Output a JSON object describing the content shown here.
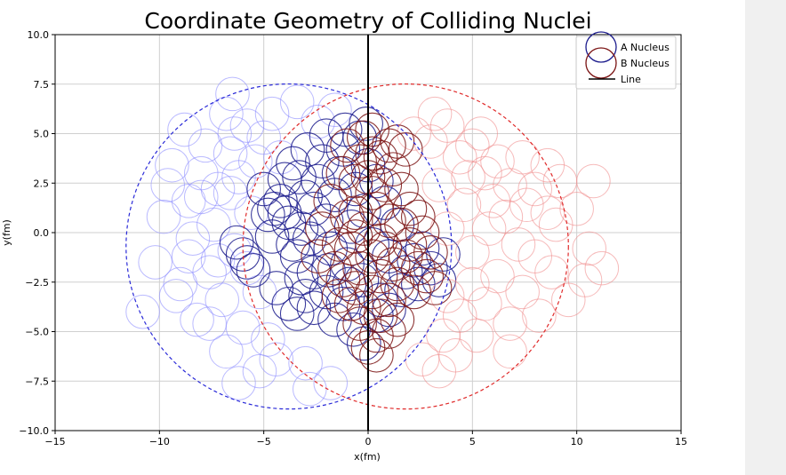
{
  "chart_data": {
    "type": "scatter",
    "title": "Coordinate Geometry of Colliding Nuclei",
    "xlabel": "x(fm)",
    "ylabel": "y(fm)",
    "xlim": [
      -15,
      15
    ],
    "ylim": [
      -10,
      10
    ],
    "xticks": [
      -15,
      -10,
      -5,
      0,
      5,
      10,
      15
    ],
    "yticks": [
      -10,
      -7.5,
      -5,
      -2.5,
      0,
      2.5,
      5,
      7.5,
      10
    ],
    "xtick_labels": [
      "−15",
      "−10",
      "−5",
      "0",
      "5",
      "10",
      "15"
    ],
    "ytick_labels": [
      "−10.0",
      "−7.5",
      "−5.0",
      "−2.5",
      "0.0",
      "2.5",
      "5.0",
      "7.5",
      "10.0"
    ],
    "grid": true,
    "legend_position": "top-right",
    "legend": [
      "A Nucleus",
      "B Nucleus",
      "Line"
    ],
    "colors": {
      "a": "#1a1a8c",
      "a_faint": "#8c8cff",
      "b": "#7a1212",
      "b_faint": "#f08c8c",
      "a_boundary": "#2a2ad8",
      "b_boundary": "#e02a2a",
      "line": "#000000",
      "grid": "#cfcfcf"
    },
    "nucleon_radius": 0.8,
    "boundaries": [
      {
        "series": "A Nucleus",
        "center": [
          -3.8,
          -0.7
        ],
        "radius": 7.8
      },
      {
        "series": "B Nucleus",
        "center": [
          1.8,
          -0.7
        ],
        "radius": 7.8
      }
    ],
    "line": {
      "x": 0
    },
    "series": [
      {
        "name": "A Nucleus",
        "participants": [
          [
            -6.3,
            -0.5
          ],
          [
            -6.0,
            -1.1
          ],
          [
            -5.8,
            -1.5
          ],
          [
            -5.5,
            -1.9
          ],
          [
            -4.8,
            0.9
          ],
          [
            -4.5,
            1.2
          ],
          [
            -4.2,
            1.6
          ],
          [
            -4.0,
            1.0
          ],
          [
            -3.8,
            0.5
          ],
          [
            -3.6,
            -0.6
          ],
          [
            -3.4,
            -1.2
          ],
          [
            -3.2,
            0.2
          ],
          [
            -3.0,
            1.8
          ],
          [
            -2.8,
            -0.3
          ],
          [
            -2.6,
            1.2
          ],
          [
            -2.4,
            2.6
          ],
          [
            -2.2,
            3.6
          ],
          [
            -2.0,
            0.6
          ],
          [
            -1.8,
            -0.8
          ],
          [
            -1.6,
            1.9
          ],
          [
            -1.4,
            3.0
          ],
          [
            -1.2,
            4.2
          ],
          [
            -1.0,
            -1.6
          ],
          [
            -0.8,
            0.3
          ],
          [
            -0.6,
            2.2
          ],
          [
            -0.4,
            4.8
          ],
          [
            -0.3,
            -2.4
          ],
          [
            -0.2,
            1.1
          ],
          [
            0.0,
            3.4
          ],
          [
            0.2,
            -0.6
          ],
          [
            0.4,
            2.6
          ],
          [
            0.6,
            -3.4
          ],
          [
            0.8,
            1.5
          ],
          [
            1.0,
            -1.2
          ],
          [
            1.4,
            0.4
          ],
          [
            1.8,
            -2.0
          ],
          [
            2.2,
            -1.4
          ],
          [
            2.6,
            -0.8
          ],
          [
            3.0,
            -1.8
          ],
          [
            3.4,
            -2.4
          ],
          [
            3.6,
            -1.1
          ],
          [
            -3.8,
            -3.6
          ],
          [
            -3.4,
            -4.1
          ],
          [
            -3.0,
            -3.2
          ],
          [
            -2.6,
            -3.8
          ],
          [
            -2.0,
            -3.0
          ],
          [
            -1.6,
            -4.4
          ],
          [
            -1.2,
            -3.6
          ],
          [
            -0.7,
            -4.9
          ],
          [
            -0.2,
            -5.6
          ],
          [
            -3.2,
            -2.3
          ],
          [
            -2.6,
            -2.0
          ],
          [
            -4.4,
            -2.8
          ],
          [
            -1.9,
            -1.9
          ],
          [
            -0.9,
            -2.6
          ],
          [
            0.4,
            -4.2
          ],
          [
            1.0,
            -3.9
          ],
          [
            1.6,
            -2.9
          ],
          [
            2.4,
            -2.6
          ],
          [
            -3.6,
            3.5
          ],
          [
            -2.9,
            4.2
          ],
          [
            -2.0,
            4.9
          ],
          [
            -1.1,
            5.2
          ],
          [
            -4.0,
            2.7
          ],
          [
            -3.3,
            2.8
          ],
          [
            -5.0,
            2.2
          ],
          [
            -4.6,
            -0.2
          ],
          [
            -0.1,
            5.5
          ]
        ],
        "spectators": [
          [
            -10.8,
            -4.0
          ],
          [
            -10.2,
            -1.5
          ],
          [
            -9.8,
            0.8
          ],
          [
            -9.4,
            3.4
          ],
          [
            -9.0,
            -2.6
          ],
          [
            -8.8,
            5.2
          ],
          [
            -8.6,
            1.6
          ],
          [
            -8.4,
            -0.3
          ],
          [
            -8.2,
            -4.4
          ],
          [
            -8.0,
            3.0
          ],
          [
            -7.8,
            4.4
          ],
          [
            -7.6,
            -2.0
          ],
          [
            -7.4,
            0.4
          ],
          [
            -7.2,
            2.2
          ],
          [
            -7.0,
            -3.4
          ],
          [
            -6.8,
            6.0
          ],
          [
            -6.6,
            4.0
          ],
          [
            -6.5,
            7.0
          ],
          [
            -6.4,
            -0.9
          ],
          [
            -6.2,
            2.8
          ],
          [
            -6.0,
            -4.8
          ],
          [
            -5.8,
            5.4
          ],
          [
            -5.6,
            1.0
          ],
          [
            -5.4,
            3.6
          ],
          [
            -5.2,
            -3.0
          ],
          [
            -5.0,
            4.8
          ],
          [
            -4.8,
            -5.4
          ],
          [
            -4.6,
            6.0
          ],
          [
            -4.4,
            -6.4
          ],
          [
            -4.2,
            3.8
          ],
          [
            -5.2,
            -7.0
          ],
          [
            -6.2,
            -7.6
          ],
          [
            -2.8,
            -7.9
          ],
          [
            -1.8,
            -7.6
          ],
          [
            -3.0,
            -6.6
          ],
          [
            -6.8,
            -6.0
          ],
          [
            -7.6,
            -4.6
          ],
          [
            -8.6,
            -1.2
          ],
          [
            -9.2,
            -3.2
          ],
          [
            -5.8,
            -1.8
          ],
          [
            -2.4,
            5.6
          ],
          [
            -1.6,
            6.2
          ],
          [
            -3.4,
            6.6
          ],
          [
            -8.0,
            1.8
          ],
          [
            -6.6,
            2.0
          ],
          [
            -7.2,
            -1.4
          ],
          [
            -9.6,
            2.4
          ],
          [
            -6.4,
            5.0
          ]
        ]
      },
      {
        "name": "B Nucleus",
        "participants": [
          [
            1.0,
            4.4
          ],
          [
            1.4,
            4.6
          ],
          [
            1.8,
            4.2
          ],
          [
            0.6,
            3.8
          ],
          [
            0.2,
            4.0
          ],
          [
            -0.4,
            3.6
          ],
          [
            1.2,
            3.2
          ],
          [
            0.8,
            2.4
          ],
          [
            0.2,
            2.0
          ],
          [
            -0.6,
            2.6
          ],
          [
            1.6,
            2.2
          ],
          [
            0.4,
            1.2
          ],
          [
            1.0,
            0.6
          ],
          [
            -0.2,
            0.2
          ],
          [
            0.6,
            -0.4
          ],
          [
            -0.8,
            -0.8
          ],
          [
            0.2,
            -1.2
          ],
          [
            1.2,
            -1.6
          ],
          [
            -0.4,
            -1.8
          ],
          [
            0.6,
            -2.2
          ],
          [
            1.4,
            -2.6
          ],
          [
            -0.6,
            -2.8
          ],
          [
            0.2,
            -3.0
          ],
          [
            1.0,
            -3.4
          ],
          [
            -0.2,
            -3.8
          ],
          [
            0.6,
            -4.2
          ],
          [
            -0.4,
            -4.6
          ],
          [
            0.4,
            -5.2
          ],
          [
            0.0,
            -5.8
          ],
          [
            0.4,
            -6.2
          ],
          [
            -1.0,
            0.8
          ],
          [
            -1.4,
            -0.6
          ],
          [
            -1.6,
            -1.8
          ],
          [
            -1.2,
            -2.4
          ],
          [
            -1.8,
            1.6
          ],
          [
            -2.2,
            0.2
          ],
          [
            -0.6,
            1.0
          ],
          [
            1.6,
            0.4
          ],
          [
            2.0,
            -0.6
          ],
          [
            2.4,
            -1.8
          ],
          [
            2.8,
            -2.2
          ],
          [
            2.0,
            1.2
          ],
          [
            2.6,
            0.0
          ],
          [
            3.0,
            -1.0
          ],
          [
            -1.0,
            4.4
          ],
          [
            -0.2,
            4.8
          ],
          [
            0.2,
            5.2
          ],
          [
            0.8,
            -0.8
          ],
          [
            -0.6,
            -0.2
          ],
          [
            1.8,
            -1.2
          ],
          [
            2.2,
            -3.0
          ],
          [
            -1.4,
            -3.2
          ],
          [
            -0.8,
            -3.6
          ],
          [
            1.4,
            -4.4
          ],
          [
            -1.2,
            3.0
          ],
          [
            0.0,
            2.8
          ],
          [
            2.4,
            0.8
          ],
          [
            -2.4,
            -1.2
          ],
          [
            3.2,
            -2.8
          ],
          [
            1.0,
            -5.0
          ]
        ],
        "spectators": [
          [
            2.2,
            5.0
          ],
          [
            3.0,
            4.6
          ],
          [
            3.8,
            5.4
          ],
          [
            4.4,
            3.8
          ],
          [
            5.0,
            4.4
          ],
          [
            5.6,
            3.0
          ],
          [
            6.2,
            3.6
          ],
          [
            6.8,
            2.4
          ],
          [
            7.4,
            3.8
          ],
          [
            8.0,
            2.2
          ],
          [
            8.6,
            1.0
          ],
          [
            9.2,
            2.6
          ],
          [
            10.0,
            1.2
          ],
          [
            10.6,
            -0.8
          ],
          [
            11.2,
            -1.8
          ],
          [
            10.4,
            -2.4
          ],
          [
            9.6,
            -3.4
          ],
          [
            8.8,
            -2.0
          ],
          [
            8.2,
            -4.2
          ],
          [
            7.4,
            -3.0
          ],
          [
            6.8,
            -4.6
          ],
          [
            6.2,
            -2.2
          ],
          [
            5.6,
            -3.6
          ],
          [
            5.0,
            -2.6
          ],
          [
            4.4,
            -4.2
          ],
          [
            3.8,
            -3.2
          ],
          [
            4.2,
            -6.2
          ],
          [
            3.6,
            -5.2
          ],
          [
            5.0,
            -1.0
          ],
          [
            5.8,
            0.2
          ],
          [
            6.6,
            0.8
          ],
          [
            7.2,
            -0.6
          ],
          [
            8.0,
            -1.2
          ],
          [
            8.6,
            3.4
          ],
          [
            6.0,
            1.6
          ],
          [
            4.6,
            1.4
          ],
          [
            3.8,
            0.2
          ],
          [
            3.4,
            2.4
          ],
          [
            4.8,
            2.8
          ],
          [
            7.6,
            1.4
          ],
          [
            9.0,
            0.4
          ],
          [
            10.8,
            2.6
          ],
          [
            5.4,
            5.0
          ],
          [
            3.2,
            6.0
          ],
          [
            2.6,
            -6.4
          ],
          [
            3.4,
            -7.0
          ],
          [
            5.2,
            -5.2
          ],
          [
            6.8,
            -6.0
          ]
        ]
      }
    ]
  }
}
